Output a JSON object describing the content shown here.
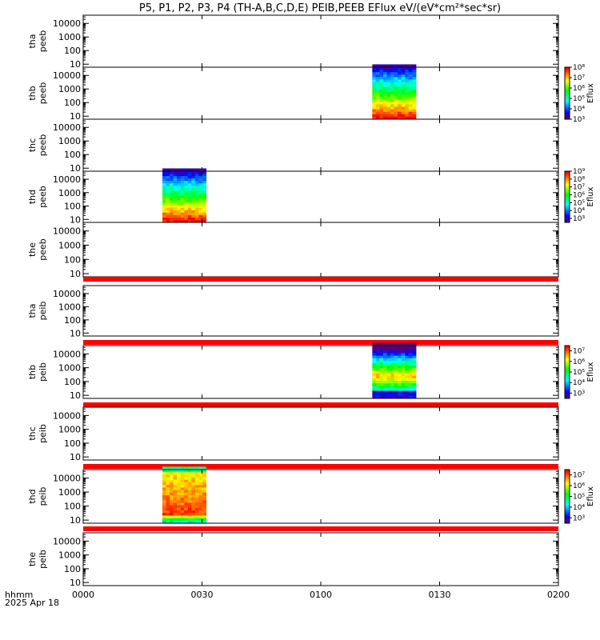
{
  "title": "P5, P1, P2, P3, P4 (TH-A,B,C,D,E) PEIB,PEEB EFlux eV/(eV*cm²*sec*sr)",
  "x_axis": {
    "label_line1": "hhmm",
    "label_line2": "2025 Apr 18",
    "ticks": [
      "0000",
      "0030",
      "0100",
      "0130",
      "0200"
    ],
    "range_minutes": [
      0,
      120
    ]
  },
  "y_ticks": [
    "10",
    "100",
    "1000",
    "10000"
  ],
  "colorbar_label": "Eflux",
  "colors": {
    "background": "#ffffff",
    "axis": "#000000",
    "no_data_bar": "#ff0000"
  },
  "chart_data": [
    {
      "type": "heatmap",
      "label1": "tha",
      "label2": "peeb",
      "y_range_ev": [
        6,
        40000
      ],
      "y_scale": "log",
      "blocks": []
    },
    {
      "type": "heatmap",
      "label1": "thb",
      "label2": "peeb",
      "y_range_ev": [
        6,
        40000
      ],
      "y_scale": "log",
      "blocks": [
        {
          "t_start_min": 73,
          "t_end_min": 84,
          "profile": "low_energy_high_flux"
        }
      ],
      "colorbar": {
        "exp_min": 3,
        "exp_max": 8,
        "tick_labels": [
          "10³",
          "10⁴",
          "10⁵",
          "10⁶",
          "10⁷",
          "10⁸"
        ]
      }
    },
    {
      "type": "heatmap",
      "label1": "thc",
      "label2": "peeb",
      "y_range_ev": [
        6,
        40000
      ],
      "y_scale": "log",
      "blocks": []
    },
    {
      "type": "heatmap",
      "label1": "thd",
      "label2": "peeb",
      "y_range_ev": [
        6,
        40000
      ],
      "y_scale": "log",
      "blocks": [
        {
          "t_start_min": 20,
          "t_end_min": 31,
          "profile": "low_energy_high_flux"
        }
      ],
      "colorbar": {
        "exp_min": 2.5,
        "exp_max": 9,
        "tick_labels": [
          "10³",
          "10⁴",
          "10⁵",
          "10⁶",
          "10⁷",
          "10⁸",
          "10⁹"
        ]
      }
    },
    {
      "type": "heatmap",
      "label1": "the",
      "label2": "peeb",
      "y_range_ev": [
        6,
        40000
      ],
      "y_scale": "log",
      "blocks": [],
      "nodata_bar_below": true
    },
    {
      "type": "heatmap",
      "label1": "tha",
      "label2": "peib",
      "y_range_ev": [
        6,
        40000
      ],
      "y_scale": "log",
      "blocks": [],
      "nodata_bar_below": true
    },
    {
      "type": "heatmap",
      "label1": "thb",
      "label2": "peib",
      "y_range_ev": [
        6,
        40000
      ],
      "y_scale": "log",
      "blocks": [
        {
          "t_start_min": 73,
          "t_end_min": 84,
          "profile": "mid_energy_peak"
        }
      ],
      "colorbar": {
        "exp_min": 2.5,
        "exp_max": 7.5,
        "tick_labels": [
          "10³",
          "10⁴",
          "10⁵",
          "10⁶",
          "10⁷"
        ]
      },
      "nodata_bar_below": true
    },
    {
      "type": "heatmap",
      "label1": "thc",
      "label2": "peib",
      "y_range_ev": [
        6,
        40000
      ],
      "y_scale": "log",
      "blocks": [],
      "nodata_bar_below": true
    },
    {
      "type": "heatmap",
      "label1": "thd",
      "label2": "peib",
      "y_range_ev": [
        6,
        40000
      ],
      "y_scale": "log",
      "blocks": [
        {
          "t_start_min": 20,
          "t_end_min": 31,
          "profile": "broad_high_flux"
        }
      ],
      "colorbar": {
        "exp_min": 2.5,
        "exp_max": 7.5,
        "tick_labels": [
          "10³",
          "10⁴",
          "10⁵",
          "10⁶",
          "10⁷"
        ]
      },
      "nodata_bar_below": true
    },
    {
      "type": "heatmap",
      "label1": "the",
      "label2": "peib",
      "y_range_ev": [
        6,
        40000
      ],
      "y_scale": "log",
      "blocks": []
    }
  ]
}
